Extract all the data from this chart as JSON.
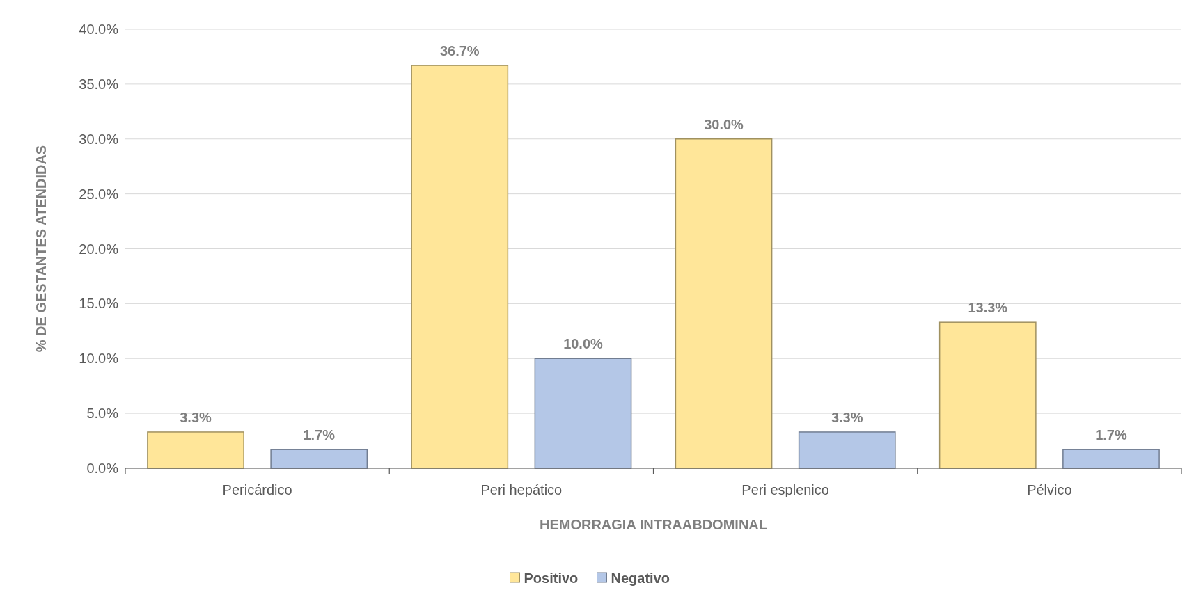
{
  "chart_data": {
    "type": "bar",
    "xlabel": "HEMORRAGIA INTRAABDOMINAL",
    "ylabel": "% DE GESTANTES ATENDIDAS",
    "categories": [
      "Pericárdico",
      "Peri hepático",
      "Peri esplenico",
      "Pélvico"
    ],
    "series": [
      {
        "name": "Positivo",
        "color": "#ffe699",
        "values": [
          3.3,
          36.7,
          30.0,
          13.3
        ],
        "value_labels": [
          "3.3%",
          "36.7%",
          "30.0%",
          "13.3%"
        ]
      },
      {
        "name": "Negativo",
        "color": "#b4c7e7",
        "values": [
          1.7,
          10.0,
          3.3,
          1.7
        ],
        "value_labels": [
          "1.7%",
          "10.0%",
          "3.3%",
          "1.7%"
        ]
      }
    ],
    "ylim": [
      0,
      40
    ],
    "yticks": [
      {
        "value": 0,
        "label": "0.0%"
      },
      {
        "value": 5,
        "label": "5.0%"
      },
      {
        "value": 10,
        "label": "10.0%"
      },
      {
        "value": 15,
        "label": "15.0%"
      },
      {
        "value": 20,
        "label": "20.0%"
      },
      {
        "value": 25,
        "label": "25.0%"
      },
      {
        "value": 30,
        "label": "30.0%"
      },
      {
        "value": 35,
        "label": "35.0%"
      },
      {
        "value": 40,
        "label": "40.0%"
      }
    ],
    "grid": "y",
    "legend": "bottom"
  }
}
